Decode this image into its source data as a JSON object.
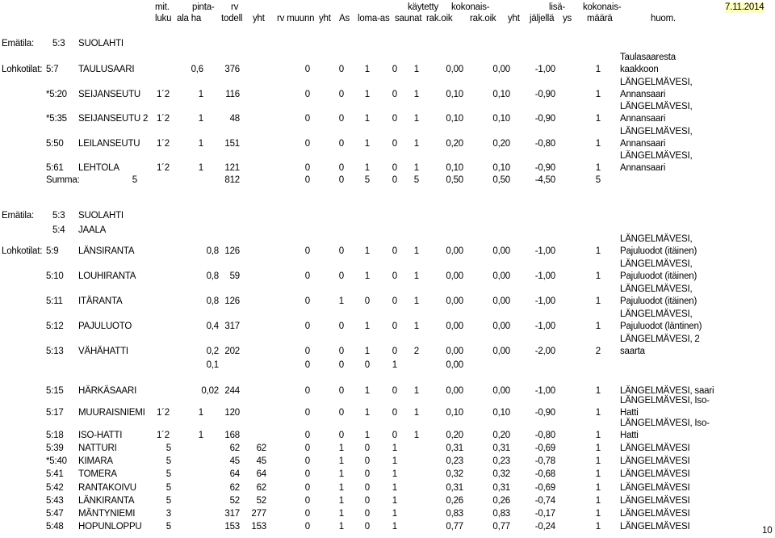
{
  "header": {
    "line1": [
      "mit.",
      "pinta-",
      "rv",
      "käytetty",
      "kokonais-",
      "lisä-",
      "kokonais-"
    ],
    "line2": [
      "luku",
      "ala ha",
      "todell",
      "yht",
      "rv muunn",
      "yht",
      "As",
      "loma-as",
      "saunat",
      "rak.oik",
      "rak.oik",
      "yht",
      "jäljellä",
      "ys",
      "määrä",
      "huom."
    ],
    "date": "7.11.2014"
  },
  "section1": {
    "emätila_label": "Emätila:",
    "emätila_code": "5:3",
    "emätila_name": "SUOLAHTI",
    "lohkotilat_label": "Lohkotilat:",
    "rows": [
      {
        "code": "5:7",
        "name": "TAULUSAARI",
        "mit": "",
        "pinta": "0,6",
        "rv": "376",
        "yht": "0",
        "muunn": "0",
        "yht2": "1",
        "as": "0",
        "loma": "1",
        "saunat": "0,00",
        "rak1": "0,00",
        "rak2": "-1,00",
        "lisa": "1",
        "huom": [
          "Taulasaaresta",
          "kaakkoon"
        ]
      },
      {
        "code": "*5:20",
        "name": "SEIJANSEUTU",
        "mit": "1´2",
        "pinta": "1",
        "rv": "116",
        "yht": "0",
        "muunn": "0",
        "yht2": "1",
        "as": "0",
        "loma": "1",
        "saunat": "0,10",
        "rak1": "0,10",
        "rak2": "-0,90",
        "lisa": "1",
        "huom": [
          "LÄNGELMÄVESI,",
          "Annansaari"
        ]
      },
      {
        "code": "*5:35",
        "name": "SEIJANSEUTU 2",
        "mit": "1´2",
        "pinta": "1",
        "rv": "48",
        "yht": "0",
        "muunn": "0",
        "yht2": "1",
        "as": "0",
        "loma": "1",
        "saunat": "0,10",
        "rak1": "0,10",
        "rak2": "-0,90",
        "lisa": "1",
        "huom": [
          "LÄNGELMÄVESI,",
          "Annansaari"
        ]
      },
      {
        "code": "5:50",
        "name": "LEILANSEUTU",
        "mit": "1´2",
        "pinta": "1",
        "rv": "151",
        "yht": "0",
        "muunn": "0",
        "yht2": "1",
        "as": "0",
        "loma": "1",
        "saunat": "0,20",
        "rak1": "0,20",
        "rak2": "-0,80",
        "lisa": "1",
        "huom": [
          "LÄNGELMÄVESI,",
          "Annansaari"
        ]
      },
      {
        "code": "5:61",
        "name": "LEHTOLA",
        "mit": "1´2",
        "pinta": "1",
        "rv": "121",
        "yht": "0",
        "muunn": "0",
        "yht2": "1",
        "as": "0",
        "loma": "1",
        "saunat": "0,10",
        "rak1": "0,10",
        "rak2": "-0,90",
        "lisa": "1",
        "huom": [
          "LÄNGELMÄVESI,",
          "Annansaari"
        ]
      }
    ],
    "summa": {
      "label": "Summa:",
      "mit": "5",
      "rv": "812",
      "yht": "0",
      "muunn": "0",
      "yht2": "5",
      "as": "0",
      "loma": "5",
      "saunat": "0,50",
      "rak1": "0,50",
      "rak2": "-4,50",
      "lisa": "5"
    }
  },
  "section2": {
    "emätila_label": "Emätila:",
    "emätila_codes": [
      "5:3",
      "5:4"
    ],
    "emätila_names": [
      "SUOLAHTI",
      "JAALA"
    ],
    "lohkotilat_label": "Lohkotilat:",
    "rows": [
      {
        "code": "5:9",
        "name": "LÄNSIRANTA",
        "mit": "",
        "pinta": "0,8",
        "rv": "126",
        "yht": "",
        "yht1": "0",
        "muunn": "0",
        "yht2": "1",
        "as": "0",
        "loma": "1",
        "saunat": "0,00",
        "rak1": "0,00",
        "rak2": "-1,00",
        "lisa": "1",
        "huom": [
          "LÄNGELMÄVESI,",
          "Pajuluodot (itäinen)"
        ]
      },
      {
        "code": "5:10",
        "name": "LOUHIRANTA",
        "mit": "",
        "pinta": "0,8",
        "rv": "59",
        "yht": "",
        "yht1": "0",
        "muunn": "0",
        "yht2": "1",
        "as": "0",
        "loma": "1",
        "saunat": "0,00",
        "rak1": "0,00",
        "rak2": "-1,00",
        "lisa": "1",
        "huom": [
          "LÄNGELMÄVESI,",
          "Pajuluodot (itäinen)"
        ]
      },
      {
        "code": "5:11",
        "name": "ITÄRANTA",
        "mit": "",
        "pinta": "0,8",
        "rv": "126",
        "yht": "",
        "yht1": "0",
        "muunn": "1",
        "yht2": "0",
        "as": "0",
        "loma": "1",
        "saunat": "0,00",
        "rak1": "0,00",
        "rak2": "-1,00",
        "lisa": "1",
        "huom": [
          "LÄNGELMÄVESI,",
          "Pajuluodot (itäinen)"
        ]
      },
      {
        "code": "5:12",
        "name": "PAJULUOTO",
        "mit": "",
        "pinta": "0,4",
        "rv": "317",
        "yht": "",
        "yht1": "0",
        "muunn": "0",
        "yht2": "1",
        "as": "0",
        "loma": "1",
        "saunat": "0,00",
        "rak1": "0,00",
        "rak2": "-1,00",
        "lisa": "1",
        "huom": [
          "LÄNGELMÄVESI,",
          "Pajuluodot (läntinen)"
        ]
      },
      {
        "code": "5:13",
        "name": "VÄHÄHATTI",
        "mit": "",
        "pinta": "0,2",
        "rv": "202",
        "yht": "",
        "yht1": "0",
        "muunn": "0",
        "yht2": "1",
        "as": "0",
        "loma": "2",
        "saunat": "0,00",
        "rak1": "0,00",
        "rak2": "-2,00",
        "lisa": "2",
        "huom": [
          "LÄNGELMÄVESI, 2",
          "saarta"
        ]
      },
      {
        "code": "",
        "name": "",
        "mit": "",
        "pinta": "0,1",
        "rv": "",
        "yht": "",
        "yht1": "0",
        "muunn": "0",
        "yht2": "0",
        "as": "1",
        "loma": "",
        "saunat": "0,00",
        "rak1": "",
        "rak2": "",
        "lisa": "",
        "huom": [
          "",
          ""
        ]
      },
      {
        "code": "5:15",
        "name": "HÄRKÄSAARI",
        "mit": "",
        "pinta": "0,02",
        "rv": "244",
        "yht": "",
        "yht1": "0",
        "muunn": "0",
        "yht2": "1",
        "as": "0",
        "loma": "1",
        "saunat": "0,00",
        "rak1": "0,00",
        "rak2": "-1,00",
        "lisa": "1",
        "huom": [
          "",
          "LÄNGELMÄVESI, saari"
        ]
      },
      {
        "code": "5:17",
        "name": "MUURAISNIEMI",
        "mit": "1´2",
        "pinta": "1",
        "rv": "120",
        "yht": "",
        "yht1": "0",
        "muunn": "0",
        "yht2": "1",
        "as": "0",
        "loma": "1",
        "saunat": "0,10",
        "rak1": "0,10",
        "rak2": "-0,90",
        "lisa": "1",
        "huom": [
          "LÄNGELMÄVESI, Iso-",
          "Hatti"
        ]
      },
      {
        "code": "5:18",
        "name": "ISO-HATTI",
        "mit": "1´2",
        "pinta": "1",
        "rv": "168",
        "yht": "",
        "yht1": "0",
        "muunn": "0",
        "yht2": "1",
        "as": "0",
        "loma": "1",
        "saunat": "0,20",
        "rak1": "0,20",
        "rak2": "-0,80",
        "lisa": "1",
        "huom": [
          "LÄNGELMÄVESI, Iso-",
          "Hatti"
        ]
      },
      {
        "code": "5:39",
        "name": "NATTURI",
        "mit": "5",
        "pinta": "",
        "rv": "62",
        "yht": "62",
        "yht1": "0",
        "muunn": "1",
        "yht2": "0",
        "as": "1",
        "loma": "",
        "saunat": "0,31",
        "rak1": "0,31",
        "rak2": "-0,69",
        "lisa": "1",
        "huom": [
          "",
          "LÄNGELMÄVESI"
        ]
      },
      {
        "code": "*5:40",
        "name": "KIMARA",
        "mit": "5",
        "pinta": "",
        "rv": "45",
        "yht": "45",
        "yht1": "0",
        "muunn": "1",
        "yht2": "0",
        "as": "1",
        "loma": "",
        "saunat": "0,23",
        "rak1": "0,23",
        "rak2": "-0,78",
        "lisa": "1",
        "huom": [
          "",
          "LÄNGELMÄVESI"
        ]
      },
      {
        "code": "5:41",
        "name": "TOMERA",
        "mit": "5",
        "pinta": "",
        "rv": "64",
        "yht": "64",
        "yht1": "0",
        "muunn": "1",
        "yht2": "0",
        "as": "1",
        "loma": "",
        "saunat": "0,32",
        "rak1": "0,32",
        "rak2": "-0,68",
        "lisa": "1",
        "huom": [
          "",
          "LÄNGELMÄVESI"
        ]
      },
      {
        "code": "5:42",
        "name": "RANTAKOIVU",
        "mit": "5",
        "pinta": "",
        "rv": "62",
        "yht": "62",
        "yht1": "0",
        "muunn": "1",
        "yht2": "0",
        "as": "1",
        "loma": "",
        "saunat": "0,31",
        "rak1": "0,31",
        "rak2": "-0,69",
        "lisa": "1",
        "huom": [
          "",
          "LÄNGELMÄVESI"
        ]
      },
      {
        "code": "5:43",
        "name": "LÄNKIRANTA",
        "mit": "5",
        "pinta": "",
        "rv": "52",
        "yht": "52",
        "yht1": "0",
        "muunn": "1",
        "yht2": "0",
        "as": "1",
        "loma": "",
        "saunat": "0,26",
        "rak1": "0,26",
        "rak2": "-0,74",
        "lisa": "1",
        "huom": [
          "",
          "LÄNGELMÄVESI"
        ]
      },
      {
        "code": "5:47",
        "name": "MÄNTYNIEMI",
        "mit": "3",
        "pinta": "",
        "rv": "317",
        "yht": "277",
        "yht1": "0",
        "muunn": "1",
        "yht2": "0",
        "as": "1",
        "loma": "",
        "saunat": "0,83",
        "rak1": "0,83",
        "rak2": "-0,17",
        "lisa": "1",
        "huom": [
          "",
          "LÄNGELMÄVESI"
        ]
      },
      {
        "code": "5:48",
        "name": "HOPUNLOPPU",
        "mit": "5",
        "pinta": "",
        "rv": "153",
        "yht": "153",
        "yht1": "0",
        "muunn": "1",
        "yht2": "0",
        "as": "1",
        "loma": "",
        "saunat": "0,77",
        "rak1": "0,77",
        "rak2": "-0,24",
        "lisa": "1",
        "huom": [
          "",
          "LÄNGELMÄVESI"
        ]
      }
    ]
  },
  "page_number": "10"
}
